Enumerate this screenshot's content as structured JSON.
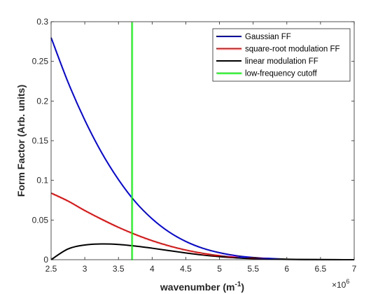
{
  "chart_data": {
    "type": "line",
    "xlabel_main": "wavenumber (m",
    "xlabel_sup": "-1",
    "xlabel_close": ")",
    "ylabel": "Form Factor (Arb. units)",
    "xlim": [
      2.5,
      7
    ],
    "ylim": [
      0,
      0.3
    ],
    "x_scale_base": "×10",
    "x_scale_exp": "6",
    "xticks": [
      2.5,
      3,
      3.5,
      4,
      4.5,
      5,
      5.5,
      6,
      6.5,
      7
    ],
    "xtick_labels": [
      "2.5",
      "3",
      "3.5",
      "4",
      "4.5",
      "5",
      "5.5",
      "6",
      "6.5",
      "7"
    ],
    "yticks": [
      0,
      0.05,
      0.1,
      0.15,
      0.2,
      0.25,
      0.3
    ],
    "ytick_labels": [
      "0",
      "0.05",
      "0.1",
      "0.15",
      "0.2",
      "0.25",
      "0.3"
    ],
    "grid": false,
    "legend_position": "top-right",
    "x": [
      2.5,
      2.75,
      3.0,
      3.25,
      3.5,
      3.75,
      4.0,
      4.25,
      4.5,
      4.75,
      5.0,
      5.25,
      5.5,
      5.75,
      6.0,
      6.25,
      6.5,
      6.75,
      7.0
    ],
    "series": [
      {
        "name": "Gaussian FF",
        "color": "#0000ff",
        "values": [
          0.28,
          0.224,
          0.176,
          0.135,
          0.101,
          0.073,
          0.0515,
          0.035,
          0.023,
          0.0145,
          0.0088,
          0.005,
          0.0028,
          0.0015,
          0.0007,
          0.0003,
          0.00015,
          6e-05,
          2e-05
        ]
      },
      {
        "name": "square-root modulation FF",
        "color": "#ff0000",
        "values": [
          0.084,
          0.074,
          0.062,
          0.051,
          0.0408,
          0.0318,
          0.024,
          0.0175,
          0.0122,
          0.0081,
          0.0051,
          0.003,
          0.0017,
          0.0009,
          0.00045,
          0.0002,
          8e-05,
          3e-05,
          1e-05
        ]
      },
      {
        "name": "linear modulation FF",
        "color": "#000000",
        "values": [
          0.0,
          0.0135,
          0.0185,
          0.0198,
          0.0192,
          0.0172,
          0.0145,
          0.0115,
          0.0085,
          0.0059,
          0.0038,
          0.0023,
          0.0013,
          0.0007,
          0.00035,
          0.00015,
          6e-05,
          2e-05,
          5e-06
        ]
      }
    ],
    "vline": {
      "name": "low-frequency cutoff",
      "color": "#00ff00",
      "x": 3.7
    }
  }
}
